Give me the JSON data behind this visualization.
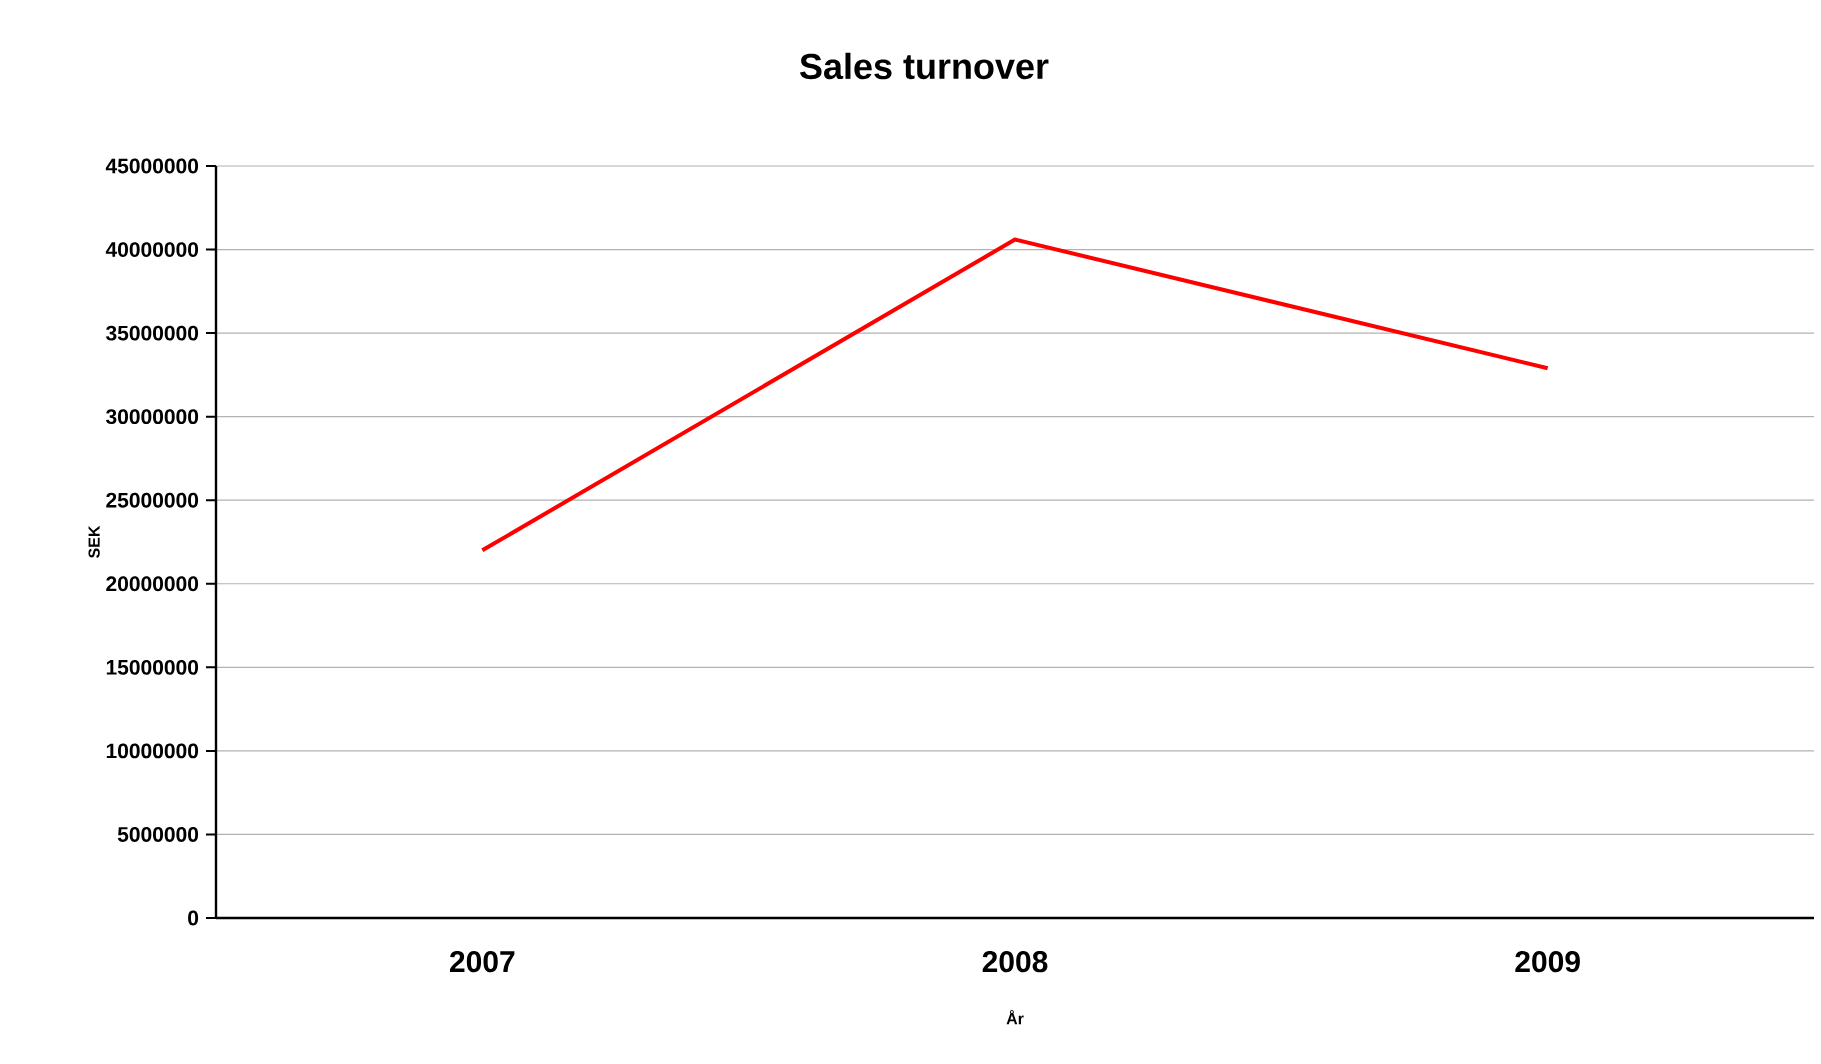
{
  "chart_data": {
    "type": "line",
    "title": "Sales turnover",
    "xlabel": "År",
    "ylabel": "SEK",
    "categories": [
      "2007",
      "2008",
      "2009"
    ],
    "series": [
      {
        "color": "#ff0000",
        "values": [
          22000000,
          40600000,
          32900000
        ]
      }
    ],
    "ylim": [
      0,
      45000000
    ],
    "yticks": [
      0,
      5000000,
      10000000,
      15000000,
      20000000,
      25000000,
      30000000,
      35000000,
      40000000,
      45000000
    ],
    "grid": "y",
    "marker": "none",
    "line_style": "solid"
  }
}
